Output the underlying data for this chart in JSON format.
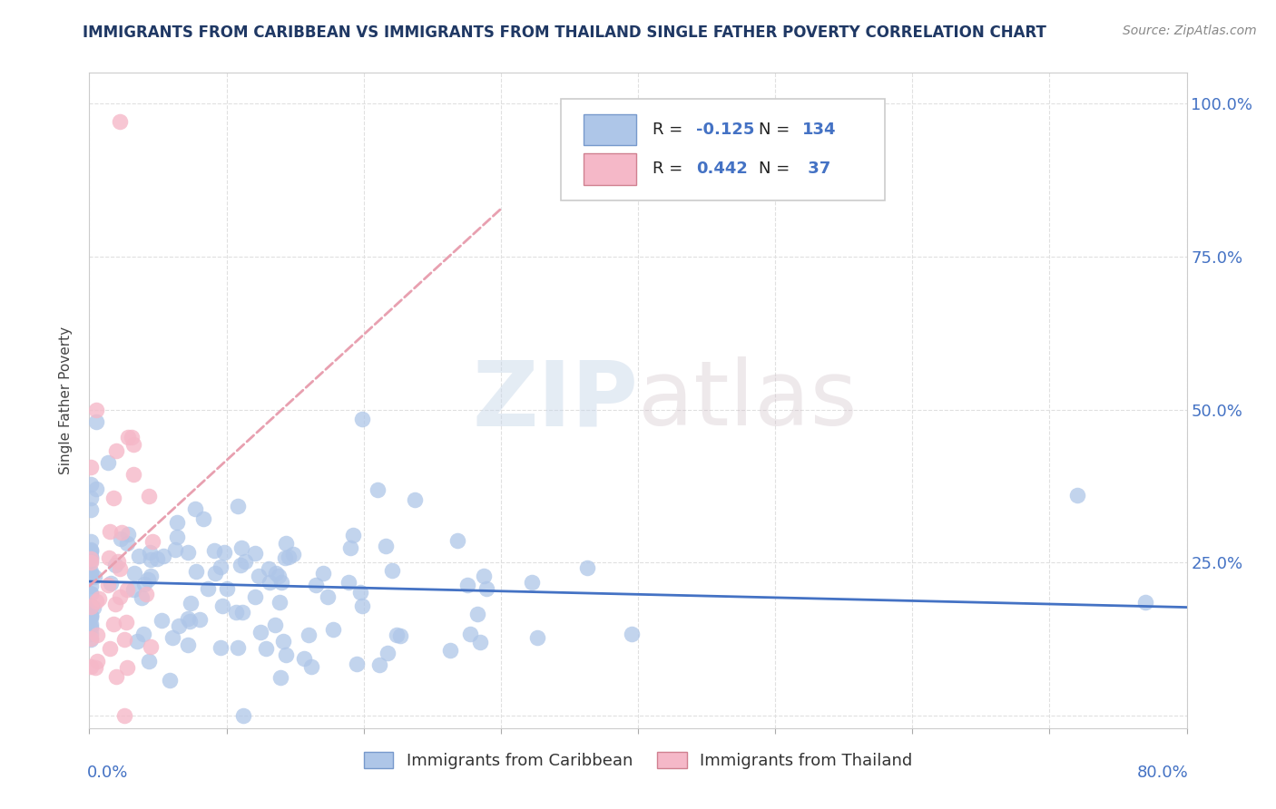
{
  "title": "IMMIGRANTS FROM CARIBBEAN VS IMMIGRANTS FROM THAILAND SINGLE FATHER POVERTY CORRELATION CHART",
  "source": "Source: ZipAtlas.com",
  "ylabel": "Single Father Poverty",
  "xlim": [
    0.0,
    0.8
  ],
  "ylim": [
    -0.02,
    1.05
  ],
  "watermark_zip": "ZIP",
  "watermark_atlas": "atlas",
  "series1_label": "Immigrants from Caribbean",
  "series2_label": "Immigrants from Thailand",
  "series1_color": "#aec6e8",
  "series2_color": "#f5b8c8",
  "series1_line_color": "#4472c4",
  "series2_line_color": "#e8a0b0",
  "R1": -0.125,
  "N1": 134,
  "R2": 0.442,
  "N2": 37,
  "title_color": "#1f3864",
  "axis_label_color": "#4472c4",
  "legend_text_color": "#4472c4",
  "grid_color": "#e0e0e0",
  "background_color": "#ffffff"
}
